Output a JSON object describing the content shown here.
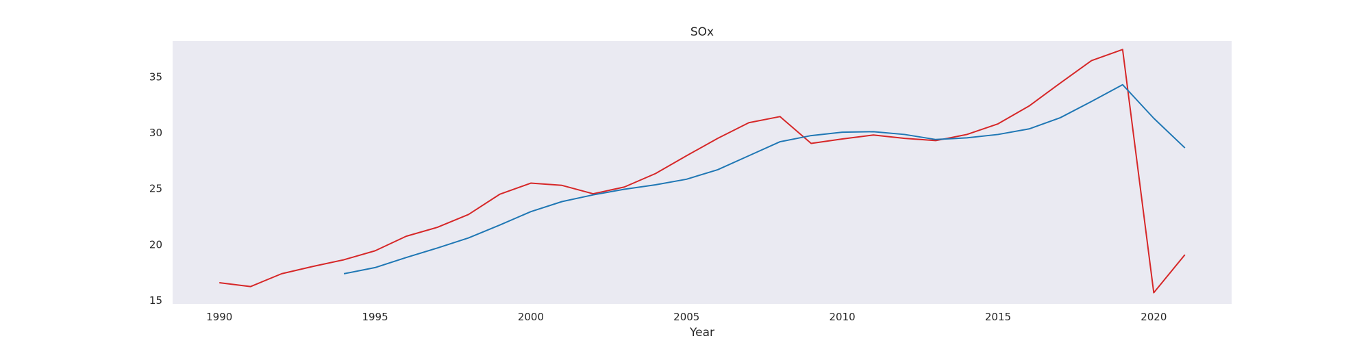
{
  "chart_data": {
    "type": "line",
    "title": "SOx",
    "xlabel": "Year",
    "ylabel": "",
    "xlim": [
      1988.5,
      2022.5
    ],
    "ylim": [
      14.7,
      38.2
    ],
    "xticks": [
      1990,
      1995,
      2000,
      2005,
      2010,
      2015,
      2020
    ],
    "xtick_labels": [
      "1990",
      "1995",
      "2000",
      "2005",
      "2010",
      "2015",
      "2020"
    ],
    "yticks": [
      15,
      20,
      25,
      30,
      35
    ],
    "ytick_labels": [
      "15",
      "20",
      "25",
      "30",
      "35"
    ],
    "grid": false,
    "background_color": "#eaeaf2",
    "series": [
      {
        "color": "#d62728",
        "x": [
          1990,
          1991,
          1992,
          1993,
          1994,
          1995,
          1996,
          1997,
          1998,
          1999,
          2000,
          2001,
          2002,
          2003,
          2004,
          2005,
          2006,
          2007,
          2008,
          2009,
          2010,
          2011,
          2012,
          2013,
          2014,
          2015,
          2016,
          2017,
          2018,
          2019,
          2020,
          2021
        ],
        "values": [
          16.6,
          16.25,
          17.4,
          18.05,
          18.65,
          19.45,
          20.75,
          21.55,
          22.7,
          24.5,
          25.5,
          25.3,
          24.55,
          25.15,
          26.35,
          27.95,
          29.5,
          30.9,
          31.45,
          29.05,
          29.45,
          29.8,
          29.5,
          29.3,
          29.85,
          30.8,
          32.4,
          34.45,
          36.45,
          37.45,
          15.7,
          19.1
        ]
      },
      {
        "color": "#1f77b4",
        "x": [
          1994,
          1995,
          1996,
          1997,
          1998,
          1999,
          2000,
          2001,
          2002,
          2003,
          2004,
          2005,
          2006,
          2007,
          2008,
          2009,
          2010,
          2011,
          2012,
          2013,
          2014,
          2015,
          2016,
          2017,
          2018,
          2019,
          2020,
          2021
        ],
        "values": [
          17.4,
          17.95,
          18.85,
          19.7,
          20.6,
          21.75,
          22.95,
          23.85,
          24.45,
          24.95,
          25.35,
          25.85,
          26.7,
          27.95,
          29.2,
          29.75,
          30.05,
          30.1,
          29.85,
          29.4,
          29.55,
          29.85,
          30.35,
          31.35,
          32.8,
          34.3,
          31.3,
          28.65
        ]
      }
    ]
  }
}
